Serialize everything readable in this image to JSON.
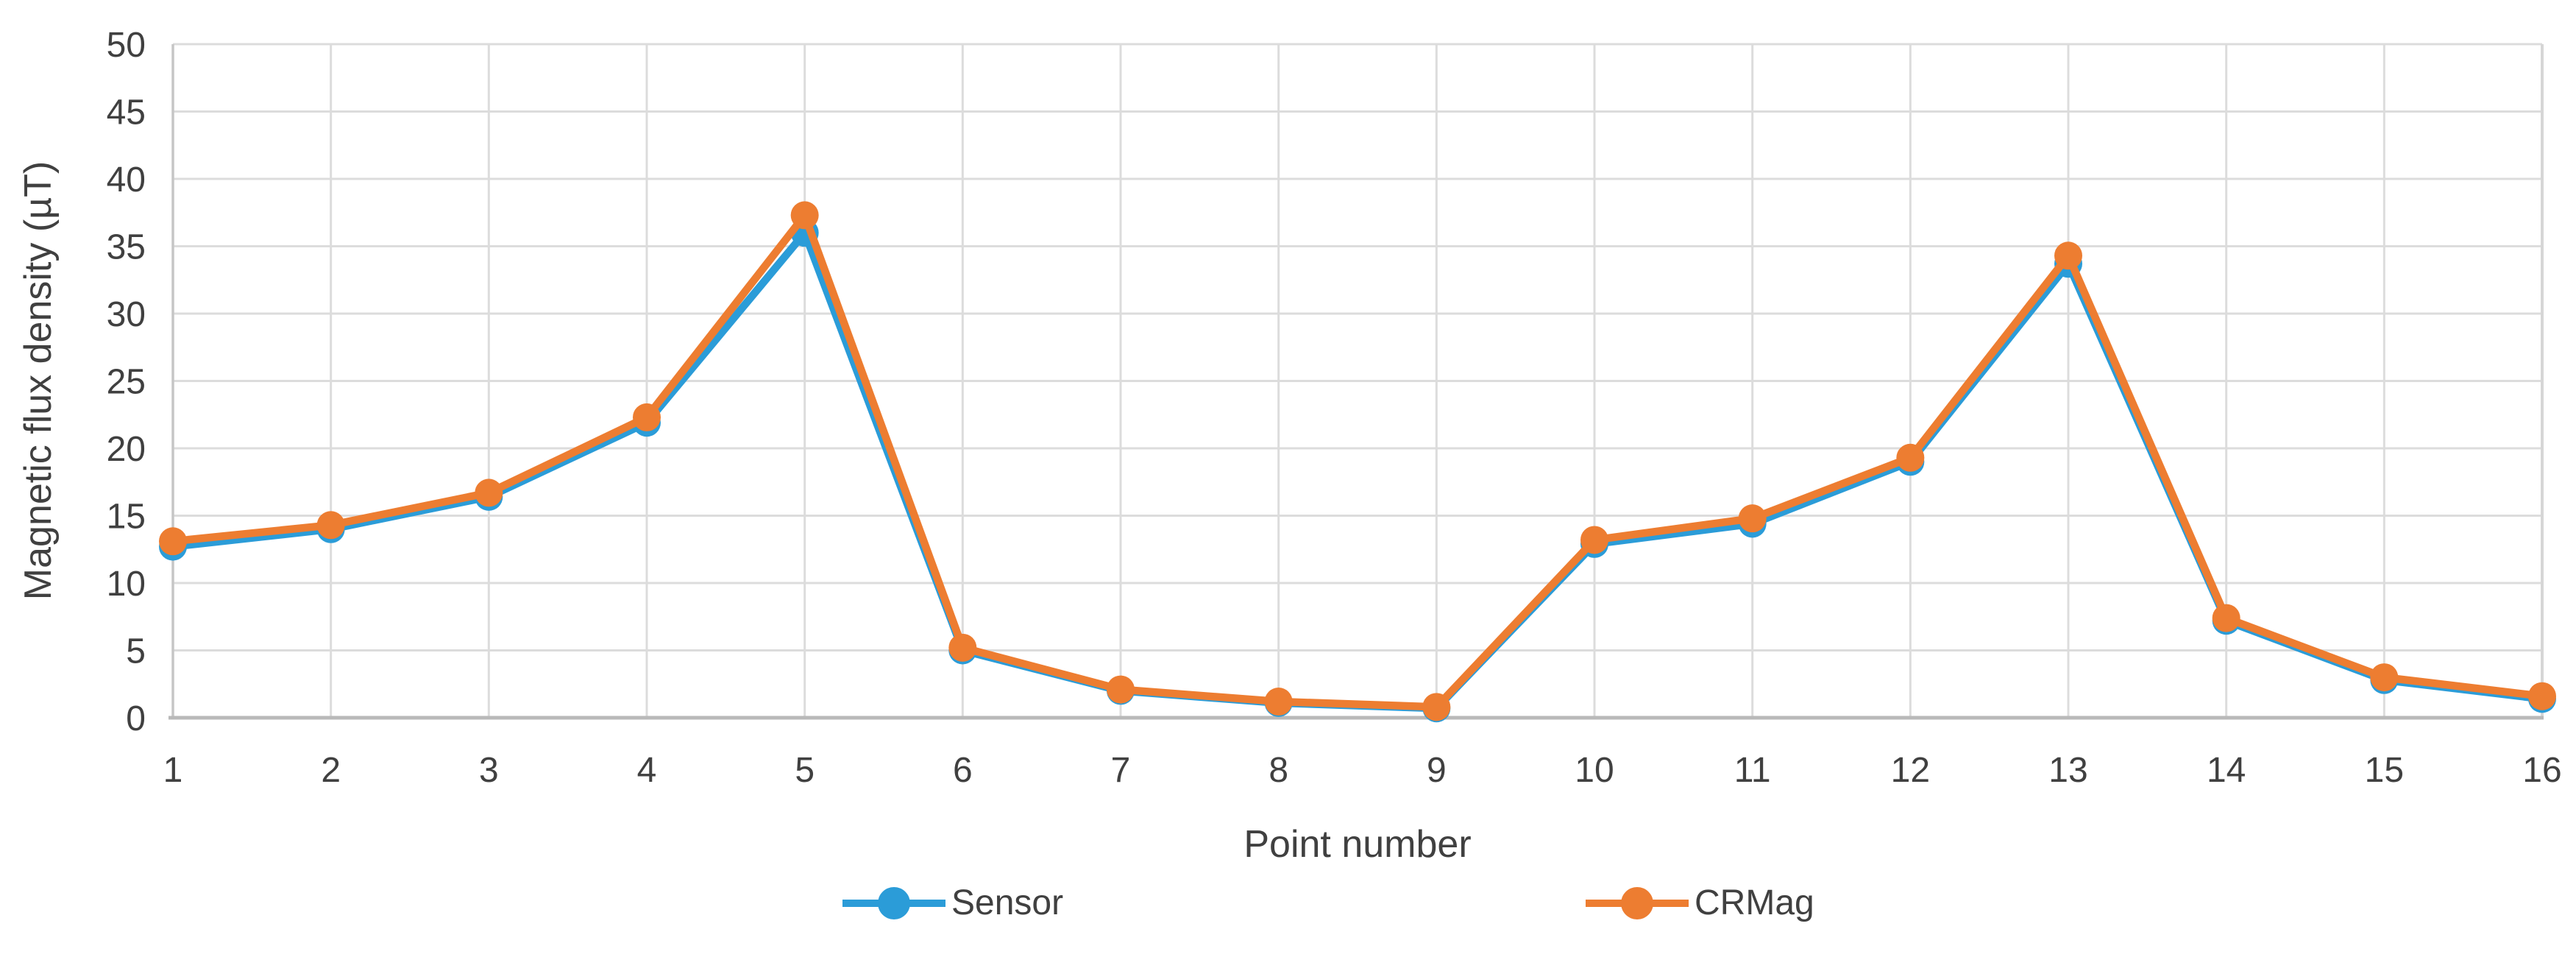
{
  "chart_data": {
    "type": "line",
    "title": "",
    "xlabel": "Point number",
    "ylabel": "Magnetic flux density (µT)",
    "categories": [
      1,
      2,
      3,
      4,
      5,
      6,
      7,
      8,
      9,
      10,
      11,
      12,
      13,
      14,
      15,
      16
    ],
    "ylim": [
      0,
      50
    ],
    "y_tick_step": 5,
    "y_ticks": [
      0,
      5,
      10,
      15,
      20,
      25,
      30,
      35,
      40,
      45,
      50
    ],
    "grid": true,
    "legend_position": "bottom",
    "series": [
      {
        "name": "Sensor",
        "color": "#2B9CD8",
        "marker": "circle",
        "values": [
          12.7,
          14.0,
          16.4,
          21.9,
          36.0,
          5.0,
          2.0,
          1.1,
          0.7,
          12.9,
          14.4,
          19.0,
          33.7,
          7.2,
          2.8,
          1.4
        ]
      },
      {
        "name": "CRMag",
        "color": "#ED7D31",
        "marker": "circle",
        "values": [
          13.1,
          14.3,
          16.7,
          22.3,
          37.3,
          5.2,
          2.1,
          1.2,
          0.8,
          13.2,
          14.8,
          19.3,
          34.3,
          7.4,
          3.0,
          1.6
        ]
      }
    ]
  }
}
